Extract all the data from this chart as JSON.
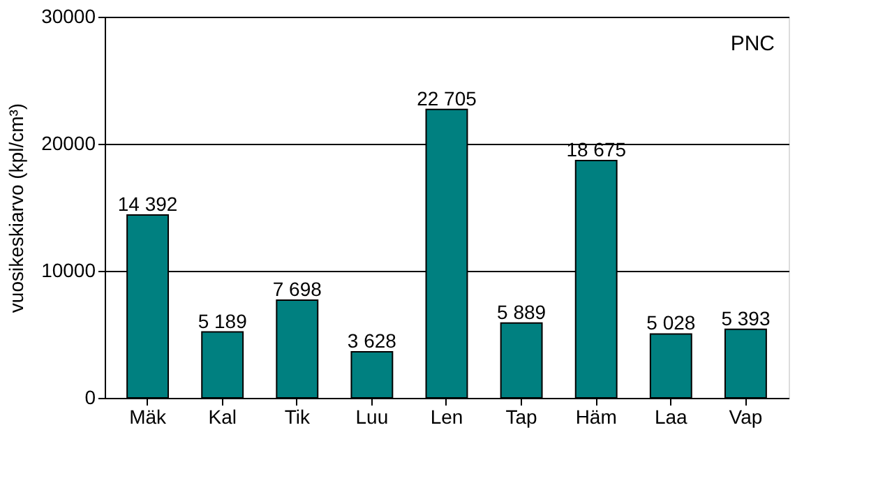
{
  "chart_data": {
    "type": "bar",
    "categories": [
      "Mäk",
      "Kal",
      "Tik",
      "Luu",
      "Len",
      "Tap",
      "Häm",
      "Laa",
      "Vap"
    ],
    "values": [
      14392,
      5189,
      7698,
      3628,
      22705,
      5889,
      18675,
      5028,
      5393
    ],
    "value_labels": [
      "14 392",
      "5 189",
      "7 698",
      "3 628",
      "22 705",
      "5 889",
      "18 675",
      "5 028",
      "5 393"
    ],
    "color": "#008080",
    "ylabel": "vuosikeskiarvo (kpl/cm³)",
    "ylim": [
      0,
      30000
    ],
    "yticks": [
      0,
      10000,
      20000,
      30000
    ],
    "grid": "y",
    "annotations": [
      "PNC"
    ]
  }
}
